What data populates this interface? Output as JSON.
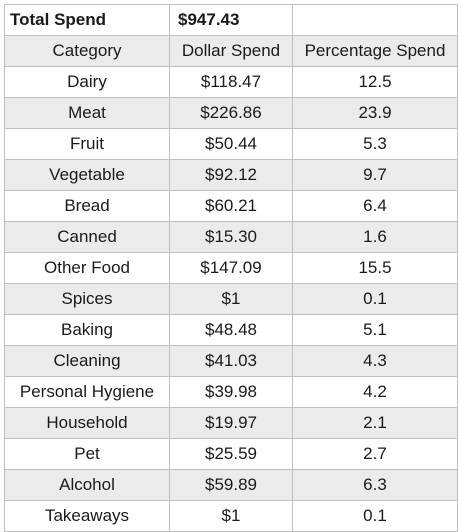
{
  "summary": {
    "label": "Total Spend",
    "value": "$947.43",
    "extra": ""
  },
  "header": {
    "category": "Category",
    "dollar": "Dollar Spend",
    "percentage": "Percentage Spend"
  },
  "rows": [
    {
      "category": "Dairy",
      "dollar": "$118.47",
      "percentage": "12.5"
    },
    {
      "category": "Meat",
      "dollar": "$226.86",
      "percentage": "23.9"
    },
    {
      "category": "Fruit",
      "dollar": "$50.44",
      "percentage": "5.3"
    },
    {
      "category": "Vegetable",
      "dollar": "$92.12",
      "percentage": "9.7"
    },
    {
      "category": "Bread",
      "dollar": "$60.21",
      "percentage": "6.4"
    },
    {
      "category": "Canned",
      "dollar": "$15.30",
      "percentage": "1.6"
    },
    {
      "category": "Other Food",
      "dollar": "$147.09",
      "percentage": "15.5"
    },
    {
      "category": "Spices",
      "dollar": "$1",
      "percentage": "0.1"
    },
    {
      "category": "Baking",
      "dollar": "$48.48",
      "percentage": "5.1"
    },
    {
      "category": "Cleaning",
      "dollar": "$41.03",
      "percentage": "4.3"
    },
    {
      "category": "Personal Hygiene",
      "dollar": "$39.98",
      "percentage": "4.2"
    },
    {
      "category": "Household",
      "dollar": "$19.97",
      "percentage": "2.1"
    },
    {
      "category": "Pet",
      "dollar": "$25.59",
      "percentage": "2.7"
    },
    {
      "category": "Alcohol",
      "dollar": "$59.89",
      "percentage": "6.3"
    },
    {
      "category": "Takeaways",
      "dollar": "$1",
      "percentage": "0.1"
    }
  ],
  "colors": {
    "shaded_row": "#ebebeb",
    "plain_row": "#ffffff",
    "grid_line": "#bfbfbf"
  }
}
